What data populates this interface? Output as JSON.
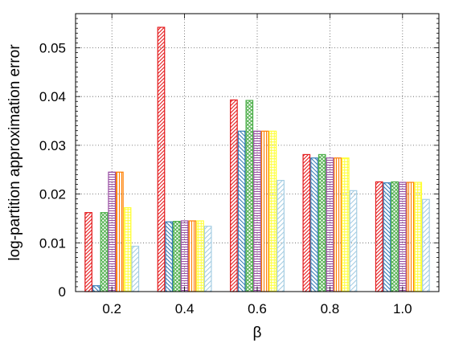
{
  "chart_data": {
    "type": "bar",
    "xlabel": "β",
    "ylabel": "log-partition approximation error",
    "categories": [
      "0.2",
      "0.4",
      "0.6",
      "0.8",
      "1.0"
    ],
    "ylim": [
      0,
      0.057
    ],
    "yticks": [
      0,
      0.01,
      0.02,
      0.03,
      0.04,
      0.05
    ],
    "ytick_labels": [
      "0",
      "0.01",
      "0.02",
      "0.03",
      "0.04",
      "0.05"
    ],
    "grid": true,
    "legend": "none",
    "series": [
      {
        "color": "#e41a1c",
        "pattern": "diag-dense",
        "values": [
          0.0162,
          0.0542,
          0.0393,
          0.0281,
          0.0225
        ]
      },
      {
        "color": "#377eb8",
        "pattern": "diag-reverse",
        "values": [
          0.0012,
          0.0143,
          0.0329,
          0.0274,
          0.0223
        ]
      },
      {
        "color": "#4daf4a",
        "pattern": "crosshatch",
        "values": [
          0.0162,
          0.0144,
          0.0392,
          0.0281,
          0.0225
        ]
      },
      {
        "color": "#984ea3",
        "pattern": "horizontal",
        "values": [
          0.0245,
          0.0145,
          0.0329,
          0.0274,
          0.0224
        ]
      },
      {
        "color": "#ff7f00",
        "pattern": "vertical",
        "values": [
          0.0245,
          0.0145,
          0.0329,
          0.0274,
          0.0224
        ]
      },
      {
        "color": "#ffff33",
        "pattern": "grid",
        "values": [
          0.0172,
          0.0145,
          0.0329,
          0.0274,
          0.0224
        ]
      },
      {
        "color": "#a6cee3",
        "pattern": "diag-sparse",
        "values": [
          0.0093,
          0.0134,
          0.0228,
          0.0207,
          0.0189
        ]
      }
    ]
  }
}
